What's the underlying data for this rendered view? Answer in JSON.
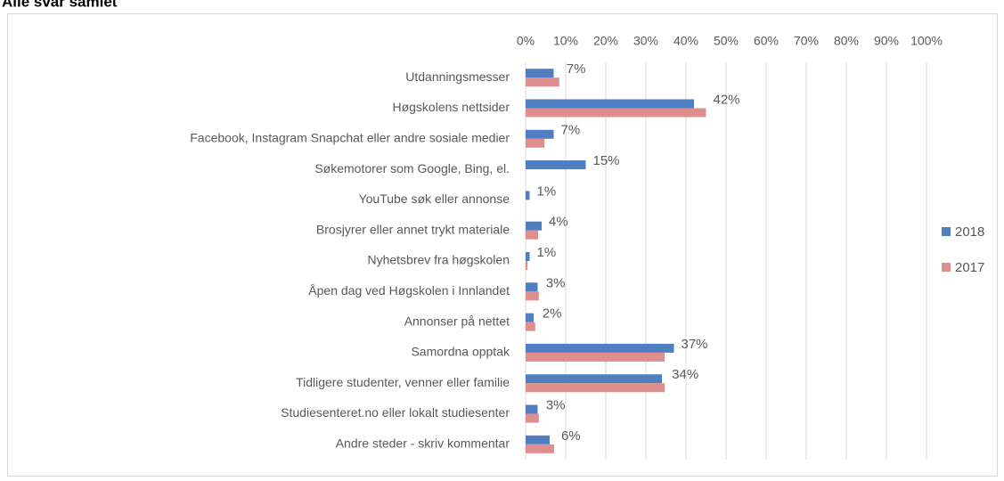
{
  "chart_data": {
    "type": "barh",
    "title": "Alle svar samlet",
    "categories": [
      "Utdanningsmesser",
      "Høgskolens nettsider",
      "Facebook, Instagram Snapchat eller andre sosiale medier",
      "Søkemotorer som Google, Bing, el.",
      "YouTube søk eller annonse",
      "Brosjyrer eller annet trykt materiale",
      "Nyhetsbrev fra høgskolen",
      "Åpen dag ved Høgskolen i Innlandet",
      "Annonser på nettet",
      "Samordna opptak",
      "Tidligere studenter, venner eller familie",
      "Studiesenteret.no eller lokalt studiesenter",
      "Andre steder - skriv kommentar"
    ],
    "series": [
      {
        "name": "2018",
        "color": "#4f7fc0",
        "values": [
          7,
          42,
          7,
          15,
          1,
          4,
          1,
          3,
          2,
          37,
          34,
          3,
          6
        ],
        "value_labels": [
          "7%",
          "42%",
          "7%",
          "15%",
          "1%",
          "4%",
          "1%",
          "3%",
          "2%",
          "37%",
          "34%",
          "3%",
          "6%"
        ]
      },
      {
        "name": "2017",
        "color": "#de8f8d",
        "values": [
          8.4,
          45,
          4.7,
          0,
          0,
          3.1,
          0.5,
          3.3,
          2.4,
          34.7,
          34.7,
          3.3,
          7.1
        ]
      }
    ],
    "xlim": [
      0,
      100
    ],
    "xticks": [
      {
        "value": 0,
        "label": "0%"
      },
      {
        "value": 10,
        "label": "10%"
      },
      {
        "value": 20,
        "label": "20%"
      },
      {
        "value": 30,
        "label": "30%"
      },
      {
        "value": 40,
        "label": "40%"
      },
      {
        "value": 50,
        "label": "50%"
      },
      {
        "value": 60,
        "label": "60%"
      },
      {
        "value": 70,
        "label": "70%"
      },
      {
        "value": 80,
        "label": "80%"
      },
      {
        "value": 90,
        "label": "90%"
      },
      {
        "value": 100,
        "label": "100%"
      }
    ],
    "grid": true,
    "legend": "right"
  }
}
